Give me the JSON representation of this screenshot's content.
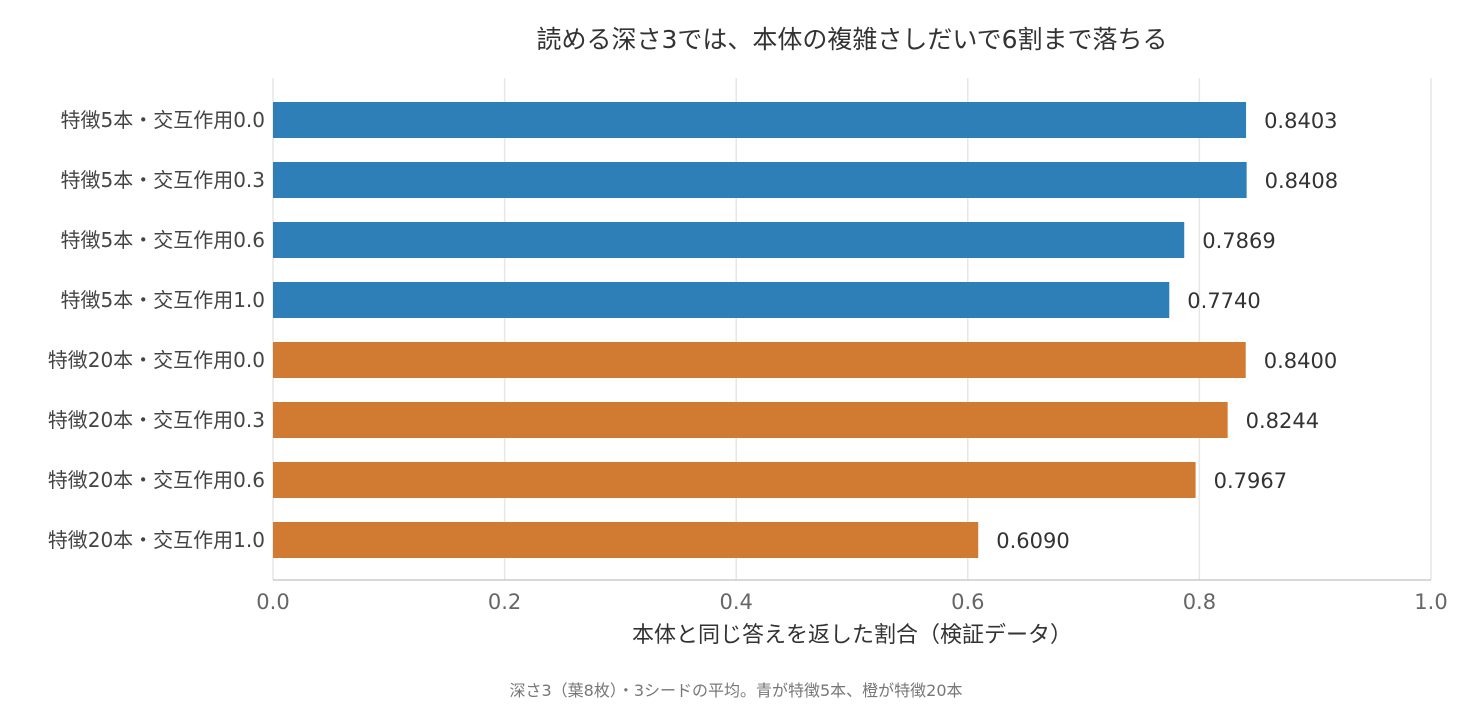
{
  "chart_data": {
    "type": "bar",
    "orientation": "horizontal",
    "title": "読める深さ3では、本体の複雑さしだいで6割まで落ちる",
    "xlabel": "本体と同じ答えを返した割合（検証データ）",
    "ylabel": "",
    "caption": "深さ3（葉8枚）・3シードの平均。青が特徴5本、橙が特徴20本",
    "xlim": [
      0.0,
      1.0
    ],
    "x_ticks": [
      "0.0",
      "0.2",
      "0.4",
      "0.6",
      "0.8",
      "1.0"
    ],
    "grid": true,
    "categories": [
      "特徴5本・交互作用0.0",
      "特徴5本・交互作用0.3",
      "特徴5本・交互作用0.6",
      "特徴5本・交互作用1.0",
      "特徴20本・交互作用0.0",
      "特徴20本・交互作用0.3",
      "特徴20本・交互作用0.6",
      "特徴20本・交互作用1.0"
    ],
    "values": [
      0.8403,
      0.8408,
      0.7869,
      0.774,
      0.84,
      0.8244,
      0.7967,
      0.609
    ],
    "value_labels": [
      "0.8403",
      "0.8408",
      "0.7869",
      "0.7740",
      "0.8400",
      "0.8244",
      "0.7967",
      "0.6090"
    ],
    "bar_colors": [
      "#2e7fb8",
      "#2e7fb8",
      "#2e7fb8",
      "#2e7fb8",
      "#d07a32",
      "#d07a32",
      "#d07a32",
      "#d07a32"
    ]
  }
}
